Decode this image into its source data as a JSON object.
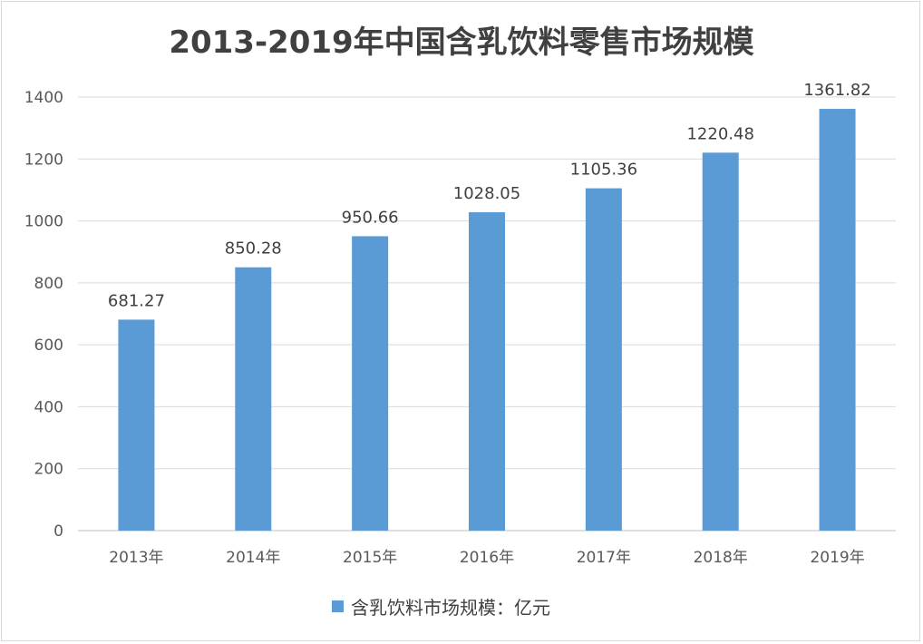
{
  "chart_data": {
    "type": "bar",
    "title": "2013-2019年中国含乳饮料零售市场规模",
    "categories": [
      "2013年",
      "2014年",
      "2015年",
      "2016年",
      "2017年",
      "2018年",
      "2019年"
    ],
    "series": [
      {
        "name": "含乳饮料市场规模：亿元",
        "values": [
          681.27,
          850.28,
          950.66,
          1028.05,
          1105.36,
          1220.48,
          1361.82
        ],
        "color": "#5b9bd5"
      }
    ],
    "data_labels": [
      "681.27",
      "850.28",
      "950.66",
      "1028.05",
      "1105.36",
      "1220.48",
      "1361.82"
    ],
    "ylim": [
      0,
      1400
    ],
    "yticks": [
      "0",
      "200",
      "400",
      "600",
      "800",
      "1000",
      "1200",
      "1400"
    ],
    "grid": true,
    "legend": "bottom",
    "xlabel": "",
    "ylabel": ""
  }
}
